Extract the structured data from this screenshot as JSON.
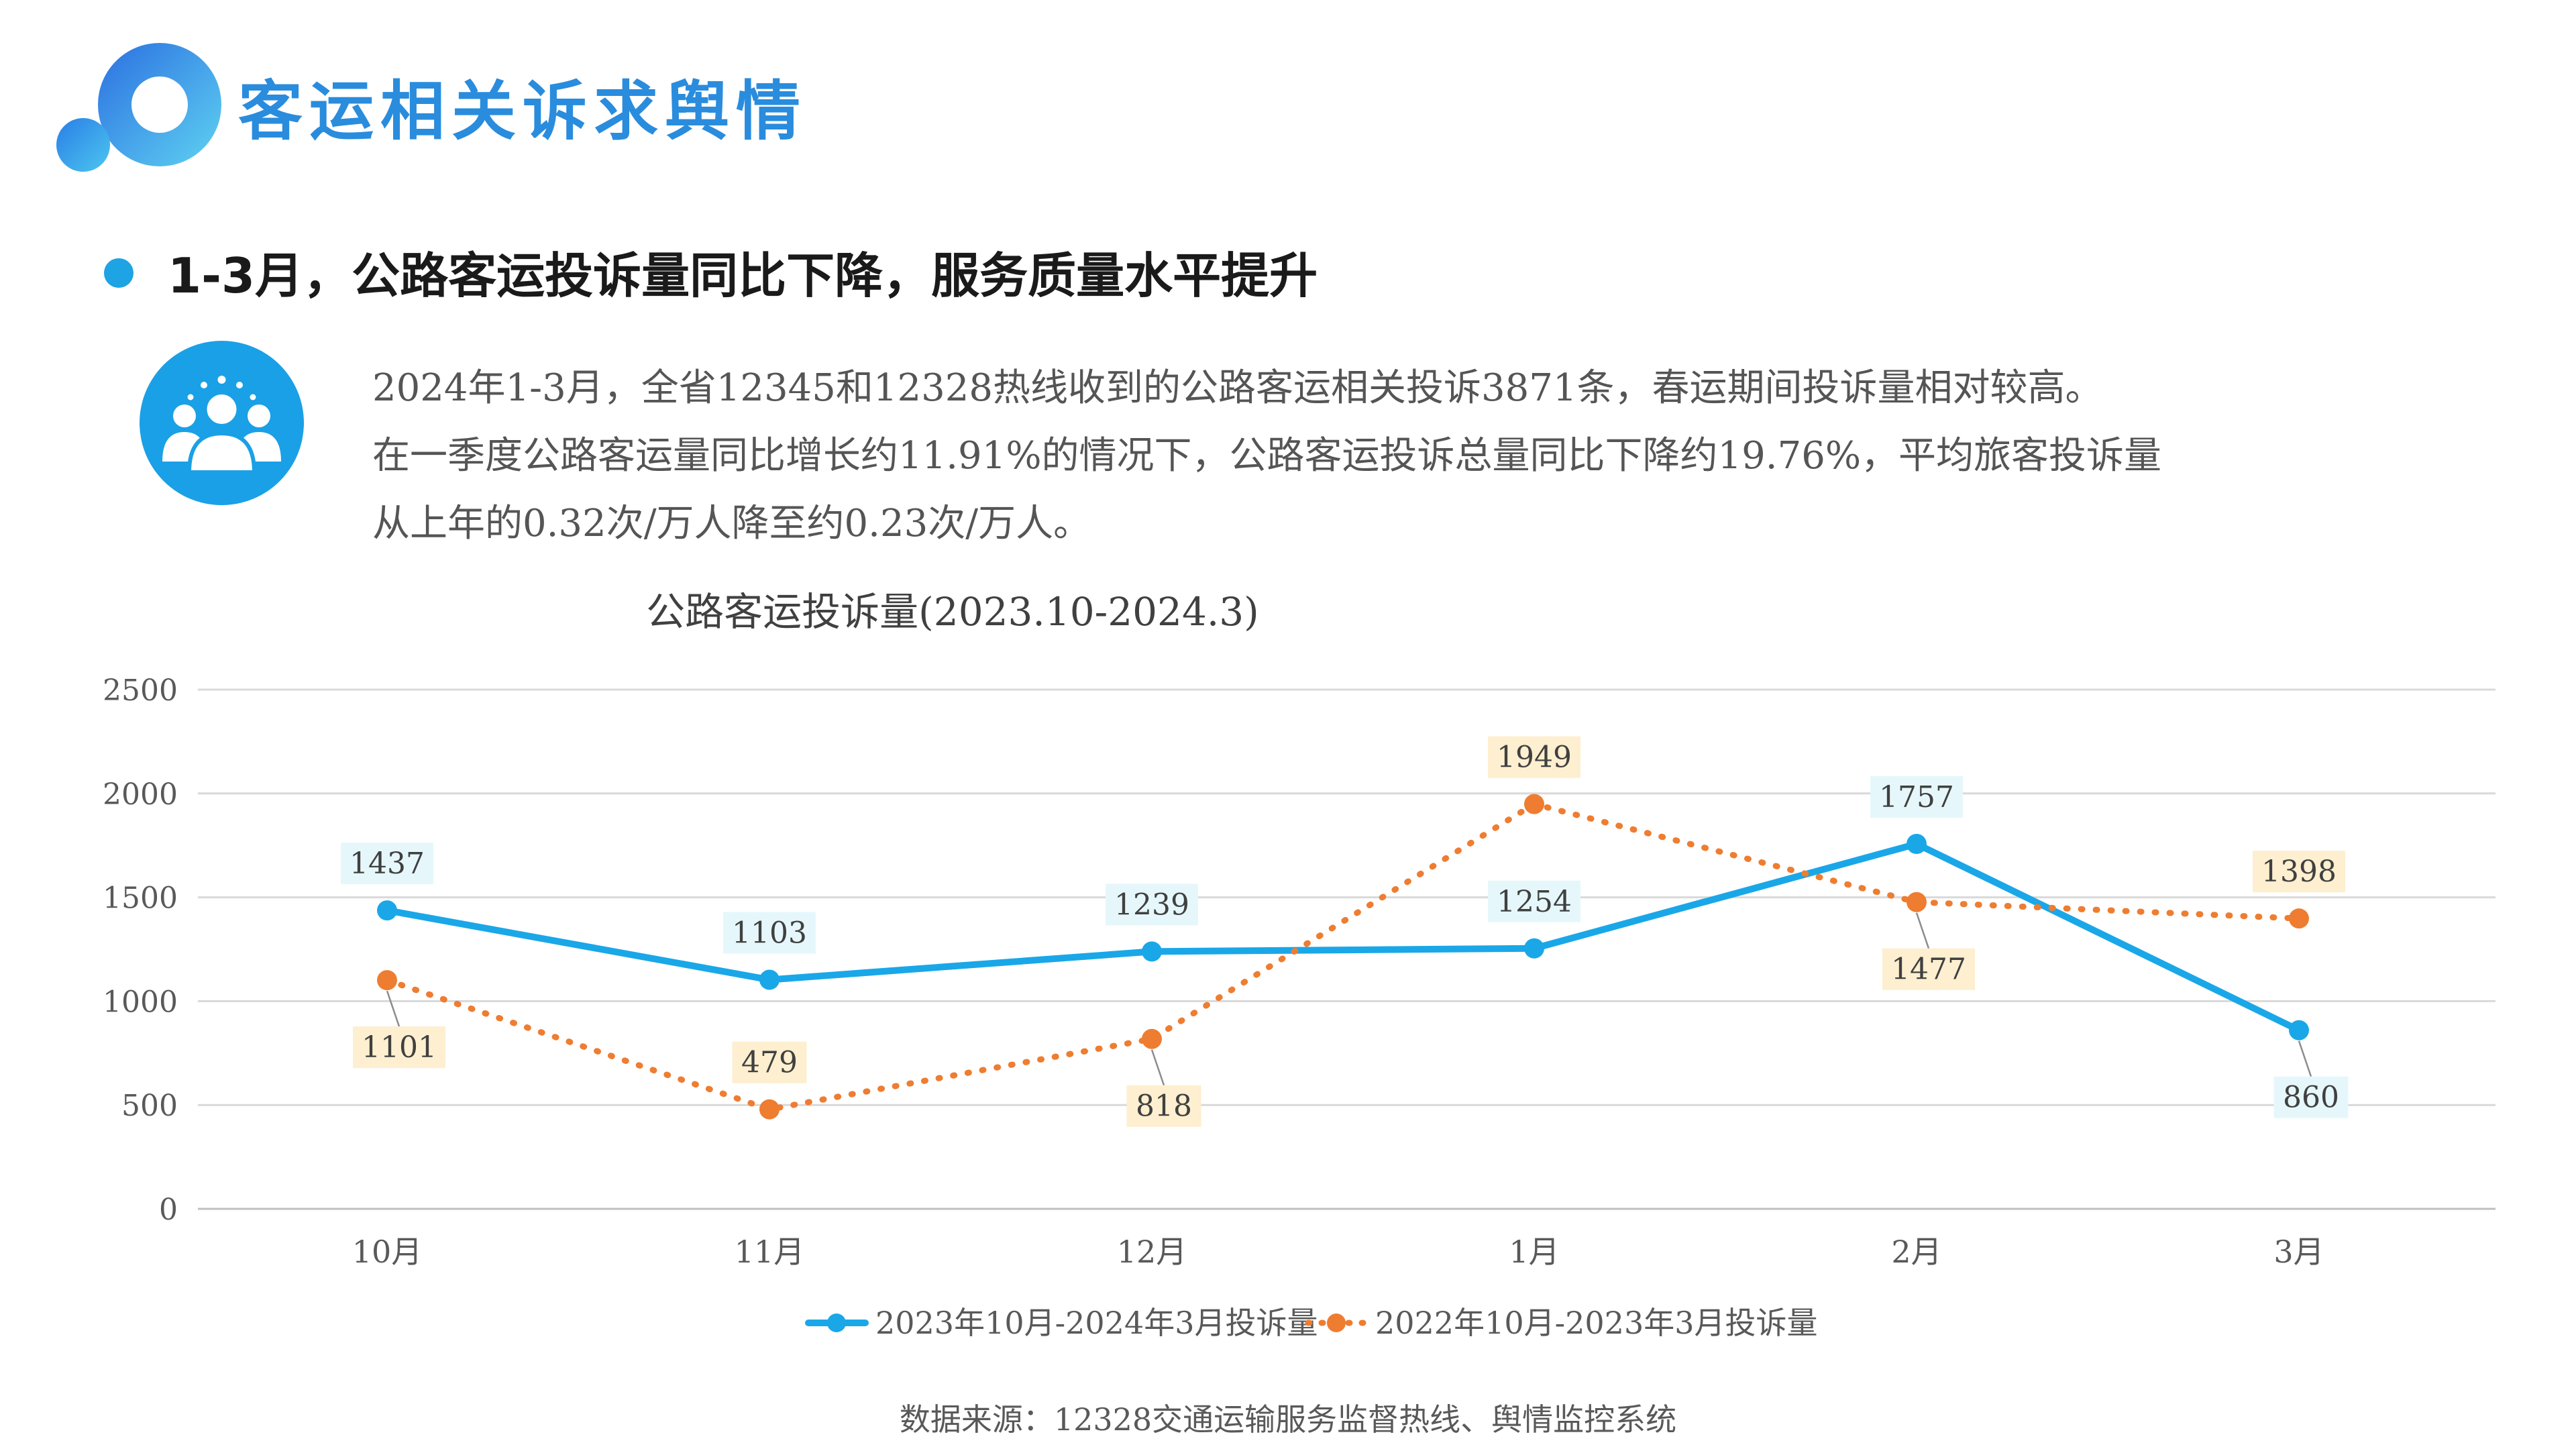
{
  "header": {
    "title": "客运相关诉求舆情"
  },
  "section": {
    "heading": "1-3月，公路客运投诉量同比下降，服务质量水平提升"
  },
  "summary": {
    "lines": [
      "2024年1-3月，全省12345和12328热线收到的公路客运相关投诉3871条，春运期间投诉量相对较高。",
      "在一季度公路客运量同比增长约11.91%的情况下，公路客运投诉总量同比下降约19.76%，平均旅客投诉量",
      "从上年的0.32次/万人降至约0.23次/万人。"
    ]
  },
  "chart_data": {
    "type": "line",
    "title": "公路客运投诉量(2023.10-2024.3)",
    "categories": [
      "10月",
      "11月",
      "12月",
      "1月",
      "2月",
      "3月"
    ],
    "ylim": [
      0,
      2500
    ],
    "yticks": [
      0,
      500,
      1000,
      1500,
      2000,
      2500
    ],
    "grid": true,
    "legend_position": "bottom",
    "series": [
      {
        "name": "2023年10月-2024年3月投诉量",
        "values": [
          1437,
          1103,
          1239,
          1254,
          1757,
          860
        ],
        "color": "#1aa7e8",
        "line_style": "solid",
        "label_fill": "#e6f7fb"
      },
      {
        "name": "2022年10月-2023年3月投诉量",
        "values": [
          1101,
          479,
          818,
          1949,
          1477,
          1398
        ],
        "color": "#ee7d31",
        "line_style": "dotted",
        "label_fill": "#fdefcf"
      }
    ]
  },
  "footer": {
    "source": "数据来源：12328交通运输服务监督热线、舆情监控系统"
  }
}
